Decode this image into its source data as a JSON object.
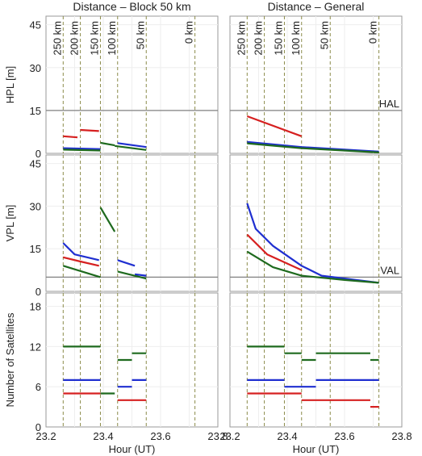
{
  "chart_data": {
    "type": "line",
    "column_titles": [
      "Distance – Block 50 km",
      "Distance – General"
    ],
    "xlabel": "Hour (UT)",
    "xlim": [
      23.2,
      23.8
    ],
    "xticks": [
      "23.2",
      "23.4",
      "23.6",
      "23.8"
    ],
    "distance_labels": [
      "250 km",
      "200 km",
      "150 km",
      "100 km",
      "50 km",
      "0 km"
    ],
    "colors": {
      "red": "#d62020",
      "blue": "#1f2fd0",
      "green": "#1e6a1e",
      "threshold": "#808080",
      "marker": "#8b8b4a"
    },
    "rows": [
      {
        "ylabel": "HPL [m]",
        "ylim": [
          0,
          48
        ],
        "yticks": [
          "0",
          "15",
          "30",
          "45"
        ],
        "threshold": {
          "label": "HAL",
          "value": 15
        },
        "panels": [
          {
            "markers": [
              23.26,
              23.32,
              23.39,
              23.45,
              23.55,
              23.72
            ],
            "series": [
              {
                "color": "red",
                "segments": [
                  {
                    "x": [
                      23.26,
                      23.31
                    ],
                    "y": [
                      6.0,
                      5.6
                    ]
                  },
                  {
                    "x": [
                      23.32,
                      23.385
                    ],
                    "y": [
                      8.2,
                      7.8
                    ]
                  }
                ]
              },
              {
                "color": "blue",
                "segments": [
                  {
                    "x": [
                      23.26,
                      23.39
                    ],
                    "y": [
                      1.8,
                      1.5
                    ]
                  },
                  {
                    "x": [
                      23.45,
                      23.55
                    ],
                    "y": [
                      3.6,
                      2.2
                    ]
                  }
                ]
              },
              {
                "color": "green",
                "segments": [
                  {
                    "x": [
                      23.26,
                      23.39
                    ],
                    "y": [
                      1.3,
                      1.0
                    ]
                  },
                  {
                    "x": [
                      23.39,
                      23.44
                    ],
                    "y": [
                      3.7,
                      2.8
                    ]
                  },
                  {
                    "x": [
                      23.44,
                      23.55
                    ],
                    "y": [
                      2.6,
                      1.2
                    ]
                  }
                ]
              }
            ]
          },
          {
            "markers": [
              23.26,
              23.32,
              23.39,
              23.45,
              23.55,
              23.72
            ],
            "series": [
              {
                "color": "red",
                "segments": [
                  {
                    "x": [
                      23.26,
                      23.45
                    ],
                    "y": [
                      13.0,
                      6.0
                    ]
                  }
                ]
              },
              {
                "color": "blue",
                "segments": [
                  {
                    "x": [
                      23.26,
                      23.45,
                      23.72
                    ],
                    "y": [
                      4.0,
                      2.2,
                      0.6
                    ]
                  }
                ]
              },
              {
                "color": "green",
                "segments": [
                  {
                    "x": [
                      23.26,
                      23.45,
                      23.72
                    ],
                    "y": [
                      3.5,
                      1.8,
                      0.3
                    ]
                  }
                ]
              }
            ]
          }
        ]
      },
      {
        "ylabel": "VPL [m]",
        "ylim": [
          0,
          48
        ],
        "yticks": [
          "0",
          "15",
          "30",
          "45"
        ],
        "threshold": {
          "label": "VAL",
          "value": 5
        },
        "panels": [
          {
            "markers": [
              23.26,
              23.32,
              23.39,
              23.45,
              23.55,
              23.72
            ],
            "series": [
              {
                "color": "blue",
                "segments": [
                  {
                    "x": [
                      23.26,
                      23.3,
                      23.385
                    ],
                    "y": [
                      17.0,
                      13.0,
                      11.0
                    ]
                  },
                  {
                    "x": [
                      23.45,
                      23.51
                    ],
                    "y": [
                      11.0,
                      9.0
                    ]
                  },
                  {
                    "x": [
                      23.51,
                      23.55
                    ],
                    "y": [
                      6.0,
                      5.5
                    ]
                  }
                ]
              },
              {
                "color": "red",
                "segments": [
                  {
                    "x": [
                      23.26,
                      23.32,
                      23.385
                    ],
                    "y": [
                      12.0,
                      10.5,
                      9.0
                    ]
                  }
                ]
              },
              {
                "color": "green",
                "segments": [
                  {
                    "x": [
                      23.26,
                      23.39
                    ],
                    "y": [
                      9.0,
                      5.0
                    ]
                  },
                  {
                    "x": [
                      23.39,
                      23.44
                    ],
                    "y": [
                      29.5,
                      21.0
                    ]
                  },
                  {
                    "x": [
                      23.45,
                      23.55
                    ],
                    "y": [
                      7.0,
                      4.5
                    ]
                  }
                ]
              }
            ]
          },
          {
            "markers": [
              23.26,
              23.32,
              23.39,
              23.45,
              23.55,
              23.72
            ],
            "series": [
              {
                "color": "blue",
                "segments": [
                  {
                    "x": [
                      23.26,
                      23.29,
                      23.35,
                      23.45,
                      23.52,
                      23.72
                    ],
                    "y": [
                      31.0,
                      22.0,
                      16.0,
                      9.0,
                      5.5,
                      3.0
                    ]
                  }
                ]
              },
              {
                "color": "red",
                "segments": [
                  {
                    "x": [
                      23.26,
                      23.33,
                      23.45
                    ],
                    "y": [
                      20.0,
                      13.0,
                      7.5
                    ]
                  }
                ]
              },
              {
                "color": "green",
                "segments": [
                  {
                    "x": [
                      23.26,
                      23.35,
                      23.45,
                      23.6,
                      23.72
                    ],
                    "y": [
                      14.0,
                      8.5,
                      5.5,
                      4.0,
                      3.0
                    ]
                  }
                ]
              }
            ]
          }
        ]
      },
      {
        "ylabel": "Number of Satellites",
        "ylim": [
          0,
          20
        ],
        "yticks": [
          "0",
          "6",
          "12",
          "18"
        ],
        "threshold": null,
        "panels": [
          {
            "markers": [
              23.26,
              23.32,
              23.39,
              23.45,
              23.55,
              23.72
            ],
            "series": [
              {
                "color": "green",
                "steps": [
                  {
                    "x": [
                      23.26,
                      23.39
                    ],
                    "y": 12
                  },
                  {
                    "x": [
                      23.39,
                      23.44
                    ],
                    "y": 5
                  },
                  {
                    "x": [
                      23.45,
                      23.5
                    ],
                    "y": 10
                  },
                  {
                    "x": [
                      23.5,
                      23.55
                    ],
                    "y": 11
                  }
                ]
              },
              {
                "color": "blue",
                "steps": [
                  {
                    "x": [
                      23.26,
                      23.39
                    ],
                    "y": 7
                  },
                  {
                    "x": [
                      23.45,
                      23.5
                    ],
                    "y": 6
                  },
                  {
                    "x": [
                      23.5,
                      23.55
                    ],
                    "y": 7
                  }
                ]
              },
              {
                "color": "red",
                "steps": [
                  {
                    "x": [
                      23.26,
                      23.39
                    ],
                    "y": 5
                  },
                  {
                    "x": [
                      23.45,
                      23.55
                    ],
                    "y": 4
                  }
                ]
              }
            ]
          },
          {
            "markers": [
              23.26,
              23.32,
              23.39,
              23.45,
              23.55,
              23.72
            ],
            "series": [
              {
                "color": "green",
                "steps": [
                  {
                    "x": [
                      23.26,
                      23.39
                    ],
                    "y": 12
                  },
                  {
                    "x": [
                      23.39,
                      23.45
                    ],
                    "y": 11
                  },
                  {
                    "x": [
                      23.45,
                      23.5
                    ],
                    "y": 10
                  },
                  {
                    "x": [
                      23.5,
                      23.69
                    ],
                    "y": 11
                  },
                  {
                    "x": [
                      23.69,
                      23.72
                    ],
                    "y": 10
                  }
                ]
              },
              {
                "color": "blue",
                "steps": [
                  {
                    "x": [
                      23.26,
                      23.39
                    ],
                    "y": 7
                  },
                  {
                    "x": [
                      23.39,
                      23.5
                    ],
                    "y": 6
                  },
                  {
                    "x": [
                      23.5,
                      23.72
                    ],
                    "y": 7
                  }
                ]
              },
              {
                "color": "red",
                "steps": [
                  {
                    "x": [
                      23.26,
                      23.45
                    ],
                    "y": 5
                  },
                  {
                    "x": [
                      23.45,
                      23.69
                    ],
                    "y": 4
                  },
                  {
                    "x": [
                      23.69,
                      23.72
                    ],
                    "y": 3
                  }
                ]
              }
            ]
          }
        ]
      }
    ]
  }
}
